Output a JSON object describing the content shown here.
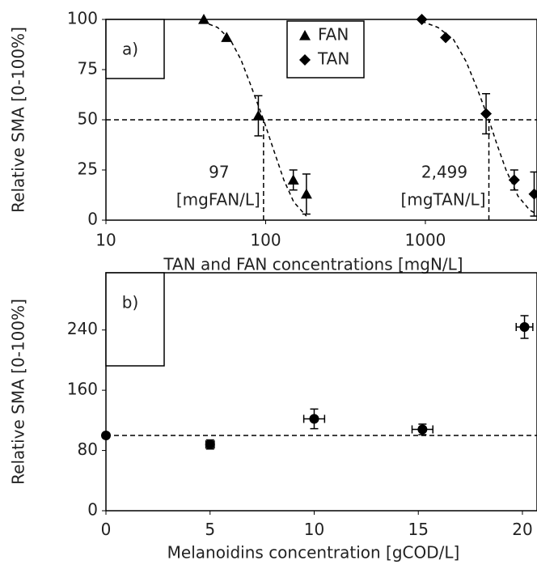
{
  "chart_data": [
    {
      "type": "scatter",
      "label": "a)",
      "xlabel": "TAN and FAN concentrations [mgN/L]",
      "ylabel": "Relative SMA [0-100%]",
      "xlog": true,
      "xlim": [
        10,
        5000
      ],
      "xticks": [
        10,
        100,
        1000
      ],
      "ylim": [
        0,
        100
      ],
      "yticks": [
        0,
        25,
        50,
        75,
        100
      ],
      "hline": 50,
      "legend": "top",
      "series": [
        {
          "name": "FAN",
          "marker": "triangle",
          "color": "#000000",
          "x": [
            41,
            57,
            90,
            149,
            180
          ],
          "values": [
            100,
            91,
            52,
            20,
            13
          ],
          "errors": [
            null,
            null,
            10,
            5,
            10
          ]
        },
        {
          "name": "TAN",
          "marker": "diamond",
          "color": "#000000",
          "x": [
            950,
            1340,
            2400,
            3600,
            4800
          ],
          "values": [
            100,
            91,
            53,
            20,
            13
          ],
          "errors": [
            null,
            null,
            10,
            5,
            11
          ]
        }
      ],
      "fits": [
        {
          "x": [
            40,
            50,
            60,
            70,
            80,
            90,
            97,
            110,
            130,
            150,
            180
          ],
          "values": [
            99,
            96,
            90,
            80,
            68,
            57,
            50,
            37,
            20,
            9,
            2
          ]
        },
        {
          "x": [
            950,
            1200,
            1500,
            1800,
            2100,
            2499,
            2800,
            3200,
            3800,
            4500,
            5000
          ],
          "values": [
            99,
            96,
            90,
            79,
            66,
            50,
            38,
            25,
            12,
            5,
            3
          ]
        }
      ],
      "annotations": [
        {
          "x": 97,
          "label": "97",
          "unit": "[mgFAN/L]"
        },
        {
          "x": 2499,
          "label": "2,499",
          "unit": "[mgTAN/L]"
        }
      ]
    },
    {
      "type": "scatter",
      "label": "b)",
      "xlabel": "Melanoidins concentration [gCOD/L]",
      "ylabel": "Relative SMA [0-100%]",
      "xlog": false,
      "xlim": [
        0,
        20.7
      ],
      "xticks": [
        0,
        5,
        10,
        15,
        20
      ],
      "ylim": [
        0,
        316
      ],
      "yticks": [
        0,
        80,
        160,
        240
      ],
      "hline": 100,
      "series": [
        {
          "marker": "circle",
          "color": "#000000",
          "x": [
            0,
            5,
            10,
            15.2,
            20.1
          ],
          "values": [
            100,
            88,
            122,
            108,
            244
          ],
          "errors": [
            null,
            6,
            13,
            7,
            15
          ],
          "xerrors": [
            null,
            0.2,
            0.5,
            0.5,
            0.4
          ]
        }
      ]
    }
  ]
}
